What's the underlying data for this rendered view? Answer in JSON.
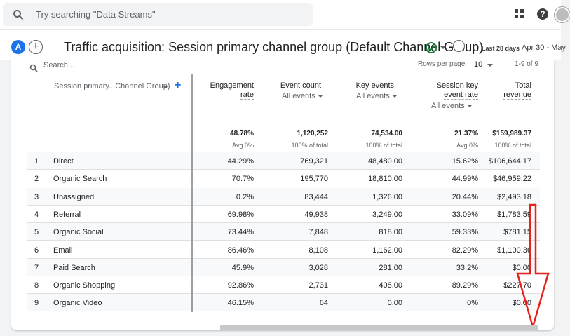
{
  "top": {
    "search_placeholder": "Try searching \"Data Streams\""
  },
  "header": {
    "account_badge": "A",
    "title": "Traffic acquisition: Session primary channel group (Default Channel Group)",
    "range_label": "Last 28 days",
    "range_value": "Apr 30 - May"
  },
  "toolbar": {
    "search_placeholder": "Search...",
    "rows_per_page_label": "Rows per page:",
    "rows_per_page_value": "10",
    "range_count": "1-9 of 9"
  },
  "table": {
    "dimension_header": "Session primary...Channel Group)",
    "columns": [
      {
        "h1": "Engagement",
        "h2": "rate",
        "sub": ""
      },
      {
        "h1": "Event count",
        "h2": "",
        "sub": "All events"
      },
      {
        "h1": "Key events",
        "h2": "",
        "sub": "All events"
      },
      {
        "h1": "Session key",
        "h2": "event rate",
        "sub": "All events"
      },
      {
        "h1": "Total",
        "h2": "revenue",
        "sub": ""
      }
    ],
    "totals": [
      {
        "value": "48.78%",
        "sub": "Avg 0%"
      },
      {
        "value": "1,120,252",
        "sub": "100% of total"
      },
      {
        "value": "74,534.00",
        "sub": "100% of total"
      },
      {
        "value": "21.37%",
        "sub": "Avg 0%"
      },
      {
        "value": "$159,989.37",
        "sub": "100% of total"
      }
    ],
    "rows": [
      {
        "idx": "1",
        "name": "Direct",
        "c1": "44.29%",
        "c2": "769,321",
        "c3": "48,480.00",
        "c4": "15.62%",
        "c5": "$106,644.17"
      },
      {
        "idx": "2",
        "name": "Organic Search",
        "c1": "70.7%",
        "c2": "195,770",
        "c3": "18,810.00",
        "c4": "44.99%",
        "c5": "$46,959.22"
      },
      {
        "idx": "3",
        "name": "Unassigned",
        "c1": "0.2%",
        "c2": "83,444",
        "c3": "1,326.00",
        "c4": "20.44%",
        "c5": "$2,493.18"
      },
      {
        "idx": "4",
        "name": "Referral",
        "c1": "69.98%",
        "c2": "49,938",
        "c3": "3,249.00",
        "c4": "33.09%",
        "c5": "$1,783.59"
      },
      {
        "idx": "5",
        "name": "Organic Social",
        "c1": "73.44%",
        "c2": "7,848",
        "c3": "818.00",
        "c4": "59.33%",
        "c5": "$781.15"
      },
      {
        "idx": "6",
        "name": "Email",
        "c1": "86.46%",
        "c2": "8,108",
        "c3": "1,162.00",
        "c4": "82.29%",
        "c5": "$1,100.36"
      },
      {
        "idx": "7",
        "name": "Paid Search",
        "c1": "45.9%",
        "c2": "3,028",
        "c3": "281.00",
        "c4": "33.2%",
        "c5": "$0.00"
      },
      {
        "idx": "8",
        "name": "Organic Shopping",
        "c1": "92.86%",
        "c2": "2,731",
        "c3": "408.00",
        "c4": "89.29%",
        "c5": "$227.70"
      },
      {
        "idx": "9",
        "name": "Organic Video",
        "c1": "46.15%",
        "c2": "64",
        "c3": "0.00",
        "c4": "0%",
        "c5": "$0.00"
      }
    ]
  },
  "annotation_color": "#e8211b"
}
